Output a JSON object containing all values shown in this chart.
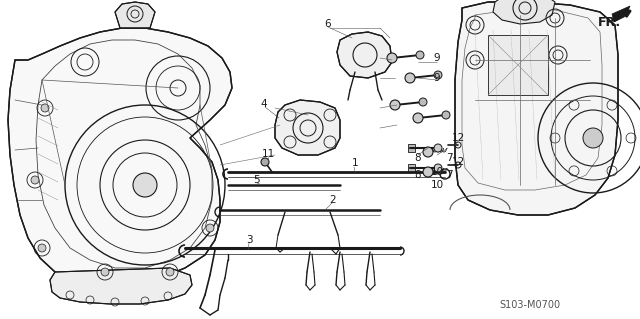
{
  "background_color": "#ffffff",
  "line_color": "#1a1a1a",
  "text_color": "#1a1a1a",
  "figsize": [
    6.4,
    3.19
  ],
  "dpi": 100,
  "diagram_code": "S103-M0700",
  "fr_label": "FR.",
  "line_width": 0.7,
  "gray_fill": "#cccccc",
  "mid_gray": "#888888",
  "light_gray": "#aaaaaa"
}
